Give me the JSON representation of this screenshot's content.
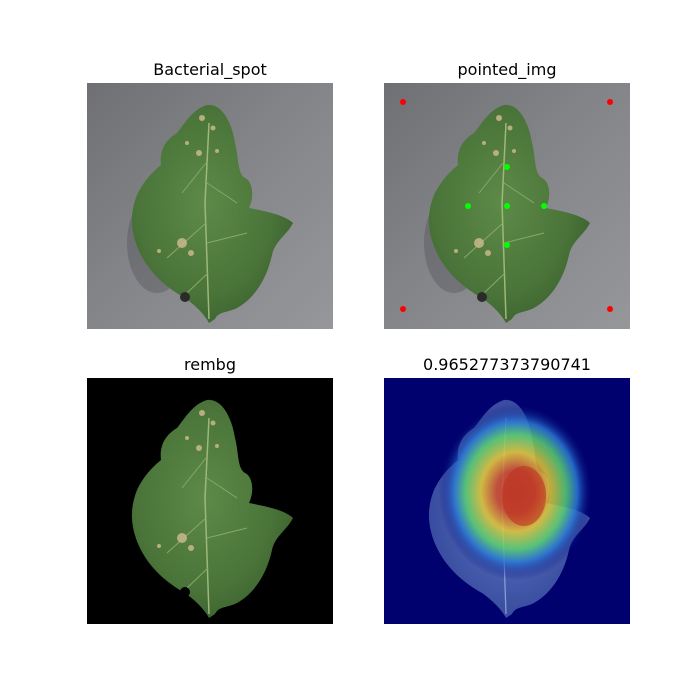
{
  "panels": [
    {
      "title": "Bacterial_spot",
      "kind": "photo"
    },
    {
      "title": "pointed_img",
      "kind": "photo-with-points",
      "points": [
        {
          "color": "#ff0000"
        },
        {
          "color": "#ff0000"
        },
        {
          "color": "#ff0000"
        },
        {
          "color": "#ff0000"
        },
        {
          "color": "#00ff00"
        },
        {
          "color": "#00ff00"
        },
        {
          "color": "#00ff00"
        },
        {
          "color": "#00ff00"
        },
        {
          "color": "#00ff00"
        }
      ]
    },
    {
      "title": "rembg",
      "kind": "background-removed"
    },
    {
      "title": "0.965277373790741",
      "kind": "heatmap-overlay"
    }
  ],
  "colors": {
    "background_gray": "#7a7b7f",
    "leaf_green": "#4e7a3e",
    "removed_background": "#000000",
    "heatmap_base": "#00006e",
    "point_red": "#ff0000",
    "point_green": "#00ff00"
  }
}
